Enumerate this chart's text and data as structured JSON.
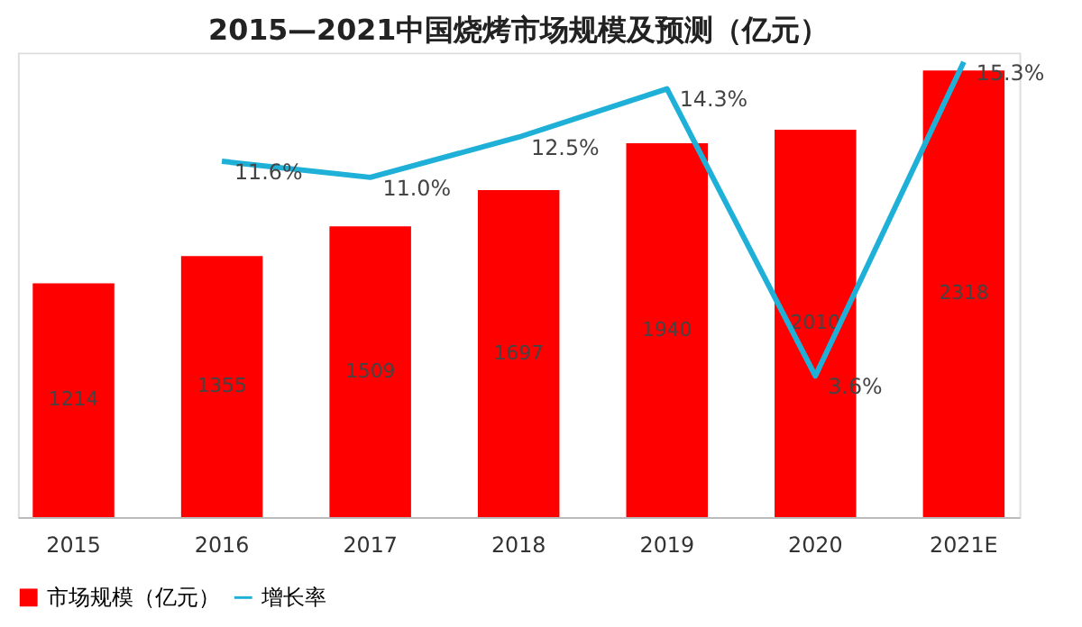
{
  "chart_data": {
    "type": "bar",
    "title": "2015—2021中国烧烤市场规模及预测（亿元）",
    "categories": [
      "2015",
      "2016",
      "2017",
      "2018",
      "2019",
      "2020",
      "2021E"
    ],
    "series": [
      {
        "name": "市场规模（亿元）",
        "color": "#ff0000",
        "values": [
          1214,
          1355,
          1509,
          1697,
          1940,
          2010,
          2318
        ]
      },
      {
        "name": "增长率",
        "type": "line",
        "axis": "y2",
        "color": "#1fb0d8",
        "values": [
          null,
          11.6,
          11.0,
          12.5,
          14.3,
          3.6,
          15.3
        ],
        "value_labels": [
          null,
          "11.6%",
          "11.0%",
          "12.5%",
          "14.3%",
          "3.6%",
          "15.3%"
        ]
      }
    ],
    "data_labels": true,
    "legend": "bottom",
    "grid": false,
    "tick_labels": "x",
    "marker": "none"
  }
}
